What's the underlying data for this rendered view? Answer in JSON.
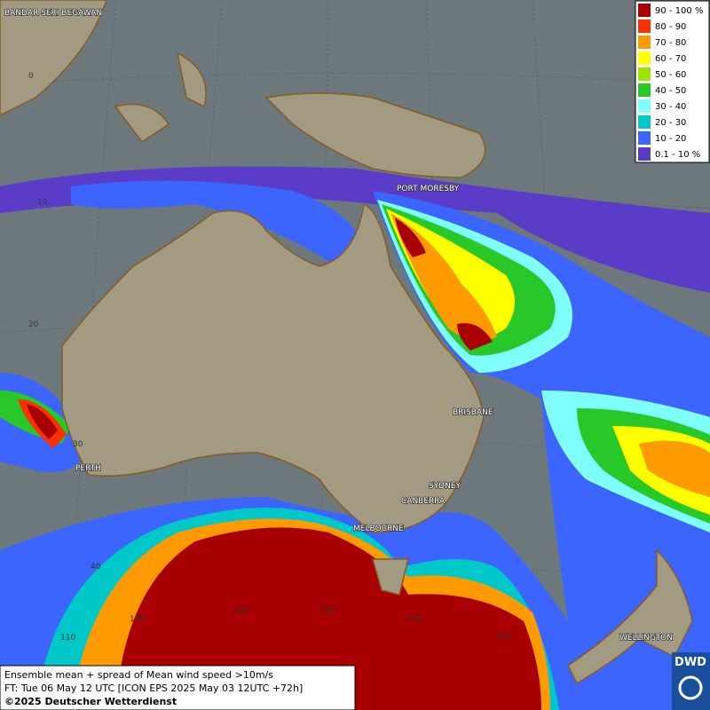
{
  "map": {
    "place_labels": [
      "BANDAR SERI BEGAWAN",
      "PORT MORESBY",
      "BRISBANE",
      "PERTH",
      "SYDNEY",
      "CANBERRA",
      "MELBOURNE",
      "WELLINGTON"
    ],
    "grid_labels": [
      "0",
      "10",
      "20",
      "30",
      "40",
      "110",
      "120",
      "130",
      "140",
      "150",
      "160"
    ],
    "legend": [
      {
        "label": "90 - 100 %",
        "color": "#a80000"
      },
      {
        "label": "80 - 90",
        "color": "#ff3000"
      },
      {
        "label": "70 - 80",
        "color": "#ff9a00"
      },
      {
        "label": "60 - 70",
        "color": "#ffff00"
      },
      {
        "label": "50 - 60",
        "color": "#9be600"
      },
      {
        "label": "40 - 50",
        "color": "#28c828"
      },
      {
        "label": "30 - 40",
        "color": "#80ffff"
      },
      {
        "label": "20 - 30",
        "color": "#00c8c8"
      },
      {
        "label": "10 - 20",
        "color": "#3c64ff"
      },
      {
        "label": "0.1 - 10 %",
        "color": "#5a3cc8"
      }
    ],
    "info": [
      "Ensemble mean + spread of Mean wind speed >10m/s",
      "FT: Tue 06 May 12 UTC [ICON EPS 2025 May 03 12UTC +72h]",
      "©2025 Deutscher Wetterdienst"
    ],
    "logo": "DWD"
  }
}
